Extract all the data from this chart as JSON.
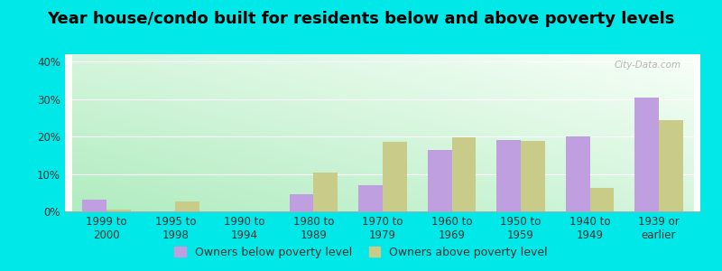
{
  "title": "Year house/condo built for residents below and above poverty levels",
  "categories": [
    "1999 to\n2000",
    "1995 to\n1998",
    "1990 to\n1994",
    "1980 to\n1989",
    "1970 to\n1979",
    "1960 to\n1969",
    "1950 to\n1959",
    "1940 to\n1949",
    "1939 or\nearlier"
  ],
  "below_poverty": [
    3.2,
    0.0,
    0.0,
    4.5,
    7.0,
    16.5,
    19.0,
    20.0,
    30.5
  ],
  "above_poverty": [
    0.5,
    2.7,
    0.0,
    10.3,
    18.5,
    19.8,
    18.8,
    6.3,
    24.5
  ],
  "below_color": "#bf9fdf",
  "above_color": "#c8cc88",
  "background_color": "#00e8e8",
  "gradient_bottom_left": "#b0ecc0",
  "gradient_top_right": "#f8fff8",
  "ylim": [
    0,
    42
  ],
  "yticks": [
    0,
    10,
    20,
    30,
    40
  ],
  "ytick_labels": [
    "0%",
    "10%",
    "20%",
    "30%",
    "40%"
  ],
  "legend_below": "Owners below poverty level",
  "legend_above": "Owners above poverty level",
  "title_fontsize": 13,
  "tick_fontsize": 8.5,
  "legend_fontsize": 9,
  "bar_width": 0.35
}
